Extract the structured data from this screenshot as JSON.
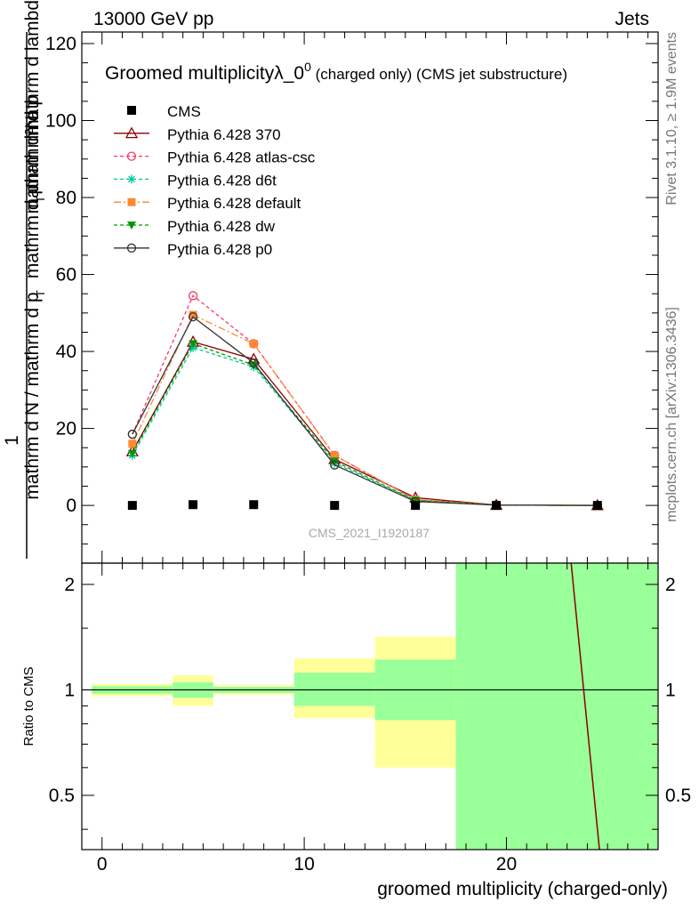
{
  "header": {
    "left": "13000 GeV pp",
    "right": "Jets"
  },
  "side": {
    "rivet": "Rivet 3.1.10, ≥ 1.9M events",
    "mcplots": "mcplots.cern.ch [arXiv:1306.3436]"
  },
  "watermark": "CMS_2021_I1920187",
  "chart_data": [
    {
      "type": "line",
      "title": "Groomed multiplicityλ_0",
      "title_sup": "0",
      "title_suffix": " (charged only) (CMS jet substructure)",
      "ylabel": "1 / mathrm d N / mathrm d p_T mathrm d^2N / mathrm d p_T mathrm d lambda",
      "ylabel_num": "mathrm d²N",
      "ylabel_den": "mathrm d p",
      "ylabel_den2": "mathrm d lambda",
      "ylabel_left_num": "1",
      "ylabel_left_den": "mathrm d N / mathrm d p",
      "ylabel_left_den2": "mathrm d p",
      "ylabel_left_den3": "mathrm d lambda",
      "ylim": [
        -15,
        123
      ],
      "xlim": [
        -1,
        27.5
      ],
      "yticks": [
        0,
        20,
        40,
        60,
        80,
        100,
        120
      ],
      "legend_position": "top-left",
      "x": [
        1.5,
        4.5,
        7.5,
        11.5,
        15.5,
        19.5,
        24.5
      ],
      "data": {
        "name": "CMS",
        "values": [
          0,
          0.2,
          0.2,
          0,
          0,
          0,
          0
        ]
      },
      "series": [
        {
          "name": "Pythia 6.428 370",
          "color": "#8b0000",
          "dash": "",
          "marker": "triangle-open",
          "values": [
            14,
            42.5,
            38,
            12,
            2,
            0.1,
            0
          ]
        },
        {
          "name": "Pythia 6.428 atlas-csc",
          "color": "#ff3366",
          "dash": "4,3",
          "marker": "circle-open",
          "values": [
            18.5,
            54.5,
            42,
            13,
            1.5,
            0.1,
            0
          ]
        },
        {
          "name": "Pythia 6.428 d6t",
          "color": "#00cc99",
          "dash": "4,3",
          "marker": "star",
          "values": [
            13,
            41,
            36,
            11,
            1.2,
            0.1,
            0
          ]
        },
        {
          "name": "Pythia 6.428 default",
          "color": "#ff8833",
          "dash": "8,3,2,3",
          "marker": "square",
          "values": [
            16,
            49.5,
            42,
            13,
            1.5,
            0.1,
            0
          ]
        },
        {
          "name": "Pythia 6.428 dw",
          "color": "#009900",
          "dash": "4,3",
          "marker": "triangle-down",
          "values": [
            13.5,
            42,
            36.5,
            11.5,
            1.3,
            0.1,
            0
          ]
        },
        {
          "name": "Pythia 6.428 p0",
          "color": "#333333",
          "dash": "",
          "marker": "circle-open",
          "values": [
            18.5,
            49,
            37,
            10.5,
            1,
            0.1,
            0
          ]
        }
      ]
    },
    {
      "type": "area",
      "ylabel": "Ratio to CMS",
      "xlabel": "groomed multiplicity (charged-only)",
      "ylim": [
        0.35,
        2.3
      ],
      "yticks": [
        0.5,
        1,
        2
      ],
      "xticks": [
        0,
        10,
        20
      ],
      "bins": [
        {
          "x_low": -0.5,
          "x_high": 3.5,
          "yellow": [
            0.96,
            1.04
          ],
          "green": [
            0.975,
            1.025
          ]
        },
        {
          "x_low": 3.5,
          "x_high": 5.5,
          "yellow": [
            0.9,
            1.1
          ],
          "green": [
            0.95,
            1.05
          ]
        },
        {
          "x_low": 5.5,
          "x_high": 9.5,
          "yellow": [
            0.97,
            1.03
          ],
          "green": [
            0.98,
            1.02
          ]
        },
        {
          "x_low": 9.5,
          "x_high": 13.5,
          "yellow": [
            0.83,
            1.23
          ],
          "green": [
            0.9,
            1.12
          ]
        },
        {
          "x_low": 13.5,
          "x_high": 17.5,
          "yellow": [
            0.6,
            1.42
          ],
          "green": [
            0.82,
            1.22
          ]
        },
        {
          "x_low": 17.5,
          "x_high": 27.5,
          "yellow": [
            0.35,
            2.3
          ],
          "green": [
            0.35,
            2.3
          ]
        }
      ],
      "ratio_line": {
        "color": "#8b0000",
        "x": [
          23.2,
          24.6
        ],
        "y": [
          2.3,
          0.35
        ]
      }
    }
  ]
}
